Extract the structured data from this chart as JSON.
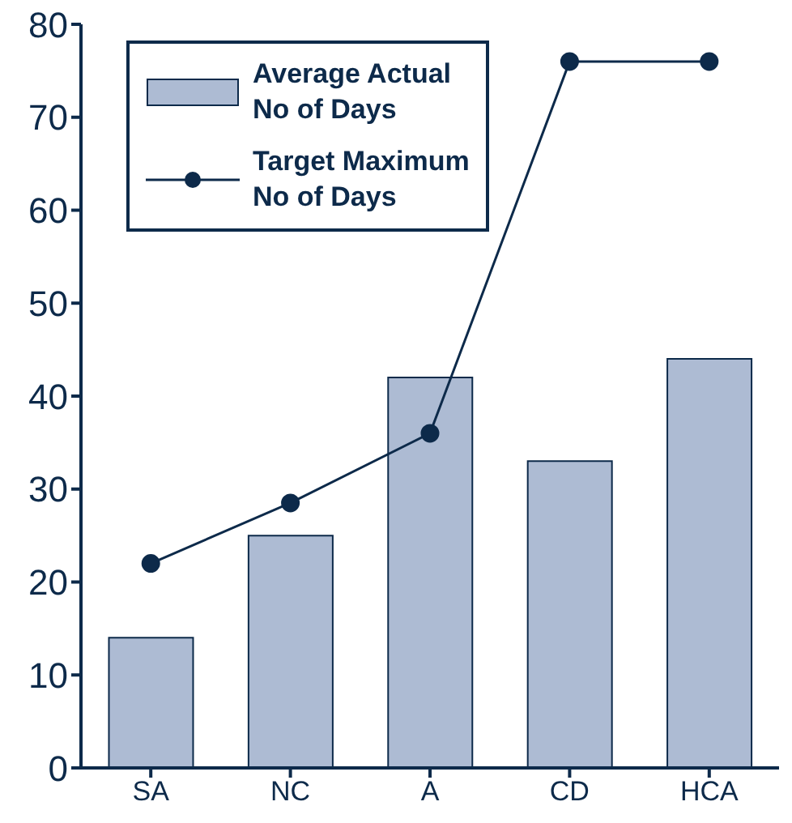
{
  "chart_data": {
    "type": "bar",
    "categories": [
      "SA",
      "NC",
      "A",
      "CD",
      "HCA"
    ],
    "series": [
      {
        "name": "Average Actual No of Days",
        "color": "#adbbd3",
        "values": [
          14,
          25,
          42,
          33,
          44
        ]
      },
      {
        "name": "Target Maximum No of Days",
        "type": "line",
        "color": "#0d2a4a",
        "values": [
          22,
          28.5,
          36,
          76,
          76
        ]
      }
    ],
    "ylim": [
      0,
      80
    ],
    "yticks": [
      0,
      10,
      20,
      30,
      40,
      50,
      60,
      70,
      80
    ],
    "grid": false,
    "legend": "top left",
    "marker": "circle"
  }
}
